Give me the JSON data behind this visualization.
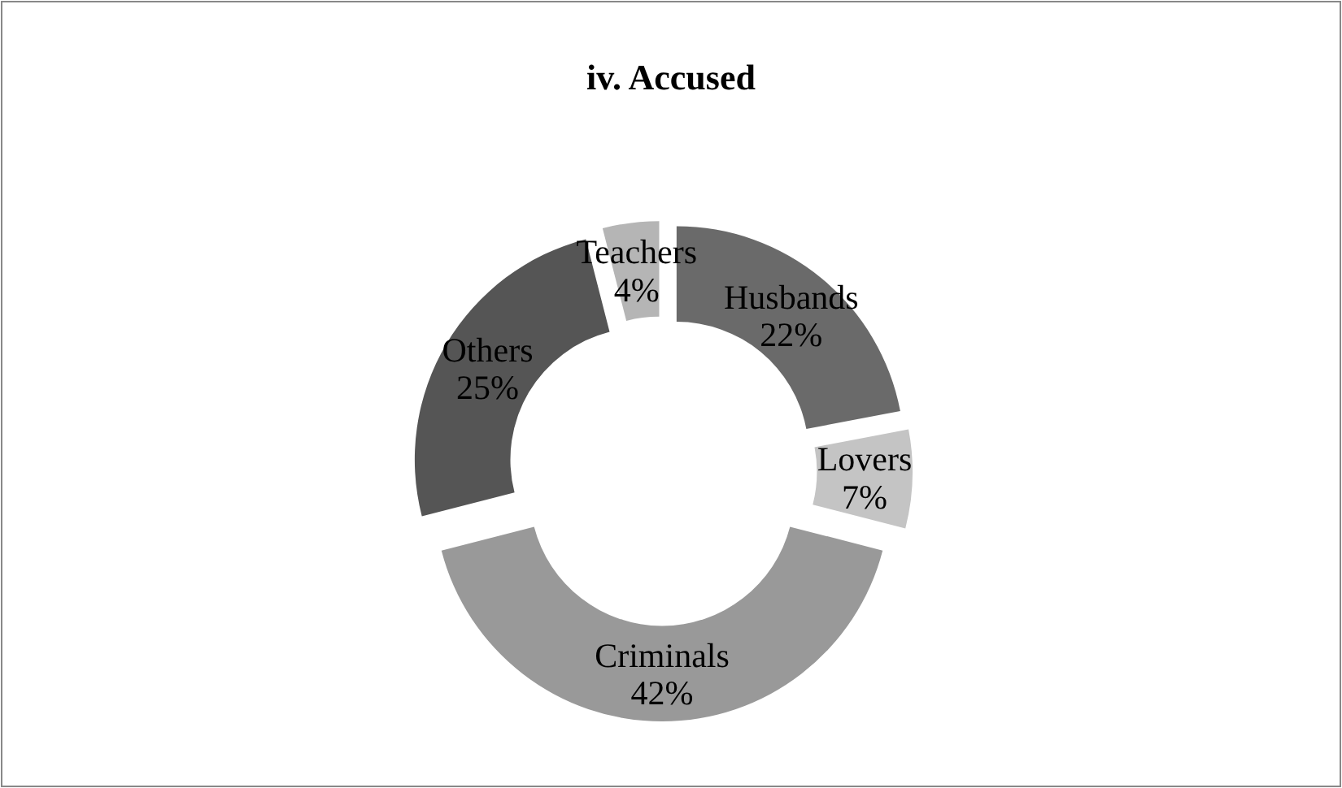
{
  "chart_data": {
    "type": "donut",
    "title": "iv. Accused",
    "categories": [
      "Husbands",
      "Lovers",
      "Criminals",
      "Others",
      "Teachers"
    ],
    "values": [
      22,
      7,
      42,
      25,
      4
    ],
    "value_labels": [
      "22%",
      "7%",
      "42%",
      "25%",
      "4%"
    ],
    "colors": [
      "#6a6a6a",
      "#c4c4c4",
      "#999999",
      "#555555",
      "#b5b5b5"
    ]
  }
}
